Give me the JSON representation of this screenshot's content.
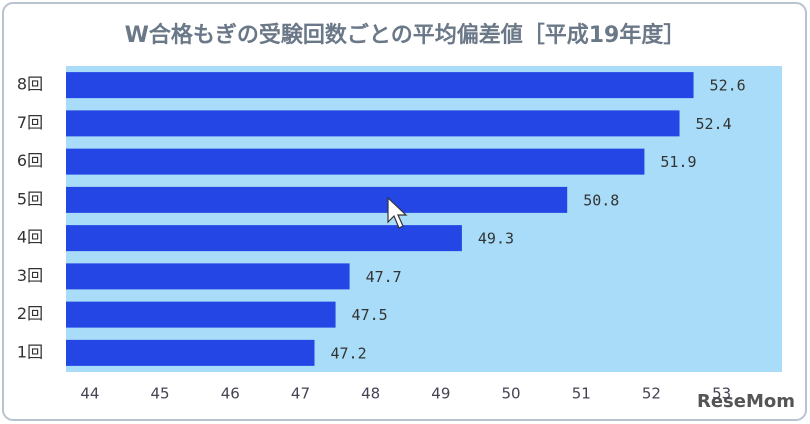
{
  "chart_data": {
    "type": "hbar",
    "title": "W合格もぎの受験回数ごとの平均偏差値［平成19年度］",
    "categories": [
      "8回",
      "7回",
      "6回",
      "5回",
      "4回",
      "3回",
      "2回",
      "1回"
    ],
    "values": [
      52.6,
      52.4,
      51.9,
      50.8,
      49.3,
      47.7,
      47.5,
      47.2
    ],
    "color": "#2446e4",
    "xlim": [
      43.66,
      53.86
    ],
    "xticks": [
      44,
      45,
      46,
      47,
      48,
      49,
      50,
      51,
      52,
      53
    ],
    "watermark": "ReseMom"
  }
}
